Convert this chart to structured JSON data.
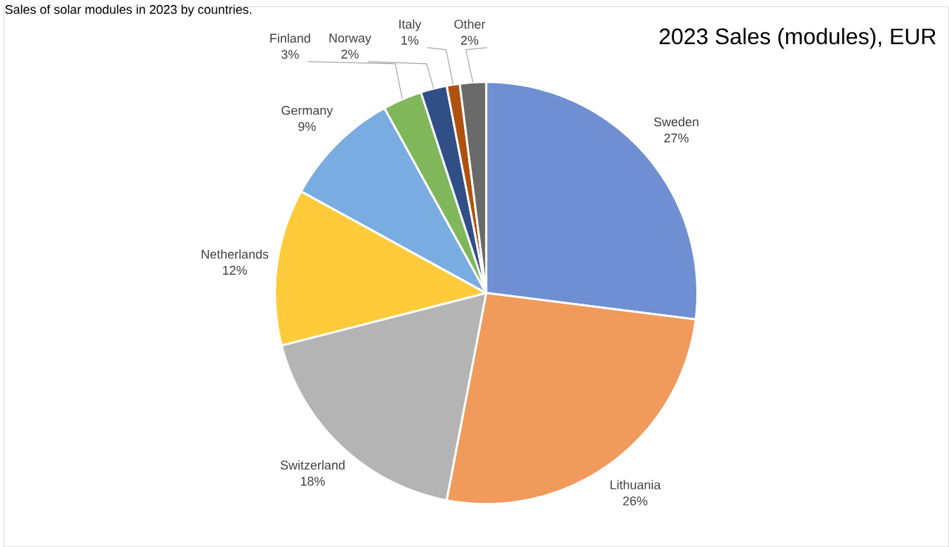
{
  "chart_data": {
    "type": "pie",
    "title": "2023 Sales (modules), EUR",
    "annotations": [
      "Sales of solar modules in 2023 by countries."
    ],
    "categories": [
      "Sweden",
      "Lithuania",
      "Switzerland",
      "Netherlands",
      "Germany",
      "Finland",
      "Norway",
      "Italy",
      "Other"
    ],
    "values": [
      27,
      26,
      18,
      12,
      9,
      3,
      2,
      1,
      2
    ],
    "value_labels": [
      "27%",
      "26%",
      "18%",
      "12%",
      "9%",
      "3%",
      "2%",
      "1%",
      "2%"
    ],
    "colors": [
      "#6f8fd2",
      "#f09a5c",
      "#b4b4b4",
      "#ffcb3a",
      "#79ace0",
      "#7fb75a",
      "#2f4f86",
      "#b0520f",
      "#6a6a6a"
    ]
  }
}
